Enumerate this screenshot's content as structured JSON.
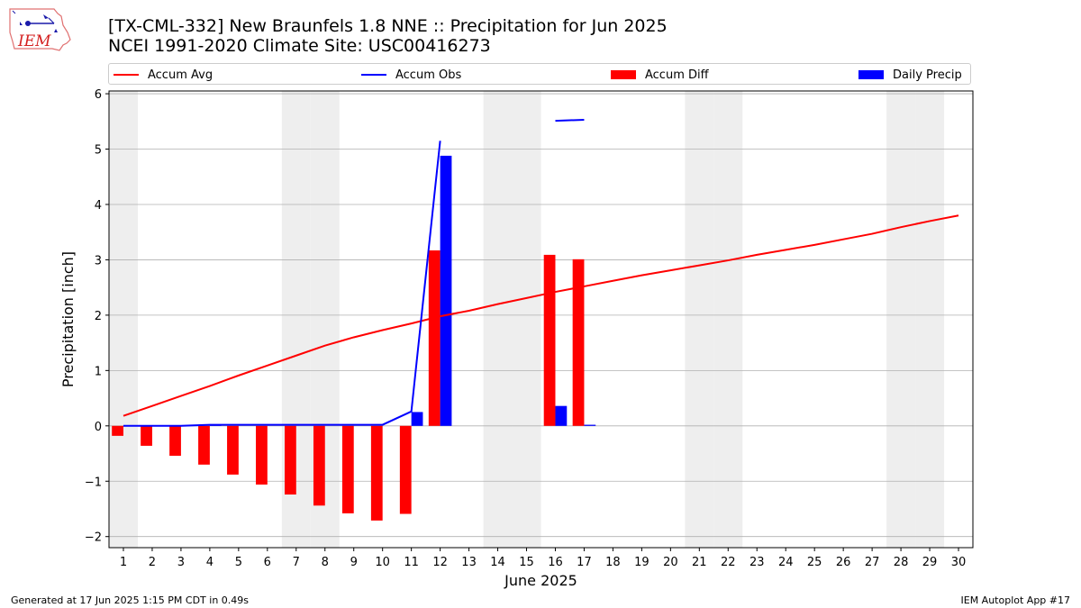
{
  "header": {
    "logo_text": "IEM",
    "title_line1": "[TX-CML-332] New Braunfels 1.8 NNE :: Precipitation for Jun 2025",
    "title_line2": "NCEI 1991-2020 Climate Site: USC00416273"
  },
  "legend": {
    "accum_avg": "Accum Avg",
    "accum_obs": "Accum Obs",
    "accum_diff": "Accum Diff",
    "daily_precip": "Daily Precip"
  },
  "colors": {
    "accum_avg": "#ff0000",
    "accum_obs": "#0000ff",
    "accum_diff": "#ff0000",
    "daily_precip": "#0000ff",
    "weekend_shade": "#eeeeee",
    "grid": "#b0b0b0"
  },
  "footer": {
    "generated": "Generated at 17 Jun 2025 1:15 PM CDT in 0.49s",
    "app": "IEM Autoplot App #17"
  },
  "chart_data": {
    "type": "bar",
    "xlabel": "June 2025",
    "ylabel": "Precipitation [inch]",
    "xlim": [
      0.5,
      30.5
    ],
    "ylim": [
      -2.2,
      6.05
    ],
    "yticks": [
      -2,
      -1,
      0,
      1,
      2,
      3,
      4,
      5,
      6
    ],
    "ytick_labels": [
      "−2",
      "−1",
      "0",
      "1",
      "2",
      "3",
      "4",
      "5",
      "6"
    ],
    "grid": true,
    "legend_position": "top",
    "categories": [
      "1",
      "2",
      "3",
      "4",
      "5",
      "6",
      "7",
      "8",
      "9",
      "10",
      "11",
      "12",
      "13",
      "14",
      "15",
      "16",
      "17",
      "18",
      "19",
      "20",
      "21",
      "22",
      "23",
      "24",
      "25",
      "26",
      "27",
      "28",
      "29",
      "30"
    ],
    "shaded_days": [
      1,
      7,
      8,
      14,
      15,
      21,
      22,
      28,
      29
    ],
    "series": [
      {
        "name": "Accum Avg",
        "kind": "line",
        "x": [
          1,
          2,
          3,
          4,
          5,
          6,
          7,
          8,
          9,
          10,
          11,
          12,
          13,
          14,
          15,
          16,
          17,
          18,
          19,
          20,
          21,
          22,
          23,
          24,
          25,
          26,
          27,
          28,
          29,
          30
        ],
        "values": [
          0.18,
          0.36,
          0.54,
          0.72,
          0.91,
          1.09,
          1.27,
          1.45,
          1.6,
          1.73,
          1.85,
          1.98,
          2.08,
          2.2,
          2.31,
          2.42,
          2.52,
          2.62,
          2.72,
          2.81,
          2.9,
          2.99,
          3.09,
          3.18,
          3.27,
          3.37,
          3.47,
          3.59,
          3.7,
          3.8
        ]
      },
      {
        "name": "Accum Obs",
        "kind": "line",
        "segments": [
          {
            "x": [
              1,
              2,
              3,
              4,
              5,
              6,
              7,
              8,
              9,
              10,
              11,
              12
            ],
            "values": [
              0,
              0,
              0,
              0.02,
              0.02,
              0.02,
              0.02,
              0.02,
              0.02,
              0.02,
              0.26,
              5.15
            ]
          },
          {
            "x": [
              16,
              17
            ],
            "values": [
              5.51,
              5.53
            ]
          }
        ]
      },
      {
        "name": "Accum Diff",
        "kind": "bar",
        "x": [
          1,
          2,
          3,
          4,
          5,
          6,
          7,
          8,
          9,
          10,
          11,
          12,
          16,
          17
        ],
        "values": [
          -0.18,
          -0.36,
          -0.54,
          -0.7,
          -0.88,
          -1.06,
          -1.24,
          -1.44,
          -1.58,
          -1.71,
          -1.59,
          3.17,
          3.09,
          3.01
        ]
      },
      {
        "name": "Daily Precip",
        "kind": "bar",
        "x": [
          4,
          11,
          12,
          16,
          17
        ],
        "values": [
          0.02,
          0.25,
          4.88,
          0.36,
          0.02
        ]
      }
    ]
  }
}
